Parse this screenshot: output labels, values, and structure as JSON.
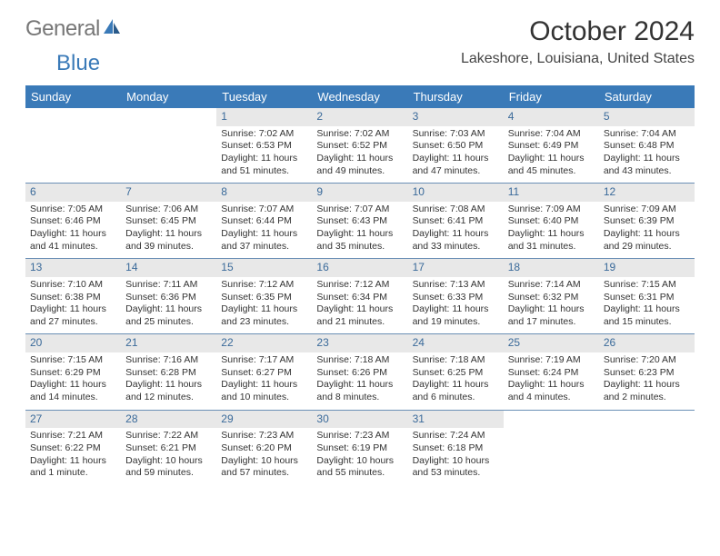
{
  "logo": {
    "text1": "General",
    "text2": "Blue"
  },
  "title": "October 2024",
  "location": "Lakeshore, Louisiana, United States",
  "colors": {
    "header_bg": "#3a7ab8",
    "daynum_bg": "#e8e8e8",
    "daynum_color": "#3a6a9a",
    "row_border": "#6a8fb5",
    "text": "#333333",
    "background": "#ffffff"
  },
  "dayHeaders": [
    "Sunday",
    "Monday",
    "Tuesday",
    "Wednesday",
    "Thursday",
    "Friday",
    "Saturday"
  ],
  "weeks": [
    [
      {
        "n": "",
        "sr": "",
        "ss": "",
        "dl": ""
      },
      {
        "n": "",
        "sr": "",
        "ss": "",
        "dl": ""
      },
      {
        "n": "1",
        "sr": "Sunrise: 7:02 AM",
        "ss": "Sunset: 6:53 PM",
        "dl": "Daylight: 11 hours and 51 minutes."
      },
      {
        "n": "2",
        "sr": "Sunrise: 7:02 AM",
        "ss": "Sunset: 6:52 PM",
        "dl": "Daylight: 11 hours and 49 minutes."
      },
      {
        "n": "3",
        "sr": "Sunrise: 7:03 AM",
        "ss": "Sunset: 6:50 PM",
        "dl": "Daylight: 11 hours and 47 minutes."
      },
      {
        "n": "4",
        "sr": "Sunrise: 7:04 AM",
        "ss": "Sunset: 6:49 PM",
        "dl": "Daylight: 11 hours and 45 minutes."
      },
      {
        "n": "5",
        "sr": "Sunrise: 7:04 AM",
        "ss": "Sunset: 6:48 PM",
        "dl": "Daylight: 11 hours and 43 minutes."
      }
    ],
    [
      {
        "n": "6",
        "sr": "Sunrise: 7:05 AM",
        "ss": "Sunset: 6:46 PM",
        "dl": "Daylight: 11 hours and 41 minutes."
      },
      {
        "n": "7",
        "sr": "Sunrise: 7:06 AM",
        "ss": "Sunset: 6:45 PM",
        "dl": "Daylight: 11 hours and 39 minutes."
      },
      {
        "n": "8",
        "sr": "Sunrise: 7:07 AM",
        "ss": "Sunset: 6:44 PM",
        "dl": "Daylight: 11 hours and 37 minutes."
      },
      {
        "n": "9",
        "sr": "Sunrise: 7:07 AM",
        "ss": "Sunset: 6:43 PM",
        "dl": "Daylight: 11 hours and 35 minutes."
      },
      {
        "n": "10",
        "sr": "Sunrise: 7:08 AM",
        "ss": "Sunset: 6:41 PM",
        "dl": "Daylight: 11 hours and 33 minutes."
      },
      {
        "n": "11",
        "sr": "Sunrise: 7:09 AM",
        "ss": "Sunset: 6:40 PM",
        "dl": "Daylight: 11 hours and 31 minutes."
      },
      {
        "n": "12",
        "sr": "Sunrise: 7:09 AM",
        "ss": "Sunset: 6:39 PM",
        "dl": "Daylight: 11 hours and 29 minutes."
      }
    ],
    [
      {
        "n": "13",
        "sr": "Sunrise: 7:10 AM",
        "ss": "Sunset: 6:38 PM",
        "dl": "Daylight: 11 hours and 27 minutes."
      },
      {
        "n": "14",
        "sr": "Sunrise: 7:11 AM",
        "ss": "Sunset: 6:36 PM",
        "dl": "Daylight: 11 hours and 25 minutes."
      },
      {
        "n": "15",
        "sr": "Sunrise: 7:12 AM",
        "ss": "Sunset: 6:35 PM",
        "dl": "Daylight: 11 hours and 23 minutes."
      },
      {
        "n": "16",
        "sr": "Sunrise: 7:12 AM",
        "ss": "Sunset: 6:34 PM",
        "dl": "Daylight: 11 hours and 21 minutes."
      },
      {
        "n": "17",
        "sr": "Sunrise: 7:13 AM",
        "ss": "Sunset: 6:33 PM",
        "dl": "Daylight: 11 hours and 19 minutes."
      },
      {
        "n": "18",
        "sr": "Sunrise: 7:14 AM",
        "ss": "Sunset: 6:32 PM",
        "dl": "Daylight: 11 hours and 17 minutes."
      },
      {
        "n": "19",
        "sr": "Sunrise: 7:15 AM",
        "ss": "Sunset: 6:31 PM",
        "dl": "Daylight: 11 hours and 15 minutes."
      }
    ],
    [
      {
        "n": "20",
        "sr": "Sunrise: 7:15 AM",
        "ss": "Sunset: 6:29 PM",
        "dl": "Daylight: 11 hours and 14 minutes."
      },
      {
        "n": "21",
        "sr": "Sunrise: 7:16 AM",
        "ss": "Sunset: 6:28 PM",
        "dl": "Daylight: 11 hours and 12 minutes."
      },
      {
        "n": "22",
        "sr": "Sunrise: 7:17 AM",
        "ss": "Sunset: 6:27 PM",
        "dl": "Daylight: 11 hours and 10 minutes."
      },
      {
        "n": "23",
        "sr": "Sunrise: 7:18 AM",
        "ss": "Sunset: 6:26 PM",
        "dl": "Daylight: 11 hours and 8 minutes."
      },
      {
        "n": "24",
        "sr": "Sunrise: 7:18 AM",
        "ss": "Sunset: 6:25 PM",
        "dl": "Daylight: 11 hours and 6 minutes."
      },
      {
        "n": "25",
        "sr": "Sunrise: 7:19 AM",
        "ss": "Sunset: 6:24 PM",
        "dl": "Daylight: 11 hours and 4 minutes."
      },
      {
        "n": "26",
        "sr": "Sunrise: 7:20 AM",
        "ss": "Sunset: 6:23 PM",
        "dl": "Daylight: 11 hours and 2 minutes."
      }
    ],
    [
      {
        "n": "27",
        "sr": "Sunrise: 7:21 AM",
        "ss": "Sunset: 6:22 PM",
        "dl": "Daylight: 11 hours and 1 minute."
      },
      {
        "n": "28",
        "sr": "Sunrise: 7:22 AM",
        "ss": "Sunset: 6:21 PM",
        "dl": "Daylight: 10 hours and 59 minutes."
      },
      {
        "n": "29",
        "sr": "Sunrise: 7:23 AM",
        "ss": "Sunset: 6:20 PM",
        "dl": "Daylight: 10 hours and 57 minutes."
      },
      {
        "n": "30",
        "sr": "Sunrise: 7:23 AM",
        "ss": "Sunset: 6:19 PM",
        "dl": "Daylight: 10 hours and 55 minutes."
      },
      {
        "n": "31",
        "sr": "Sunrise: 7:24 AM",
        "ss": "Sunset: 6:18 PM",
        "dl": "Daylight: 10 hours and 53 minutes."
      },
      {
        "n": "",
        "sr": "",
        "ss": "",
        "dl": ""
      },
      {
        "n": "",
        "sr": "",
        "ss": "",
        "dl": ""
      }
    ]
  ]
}
